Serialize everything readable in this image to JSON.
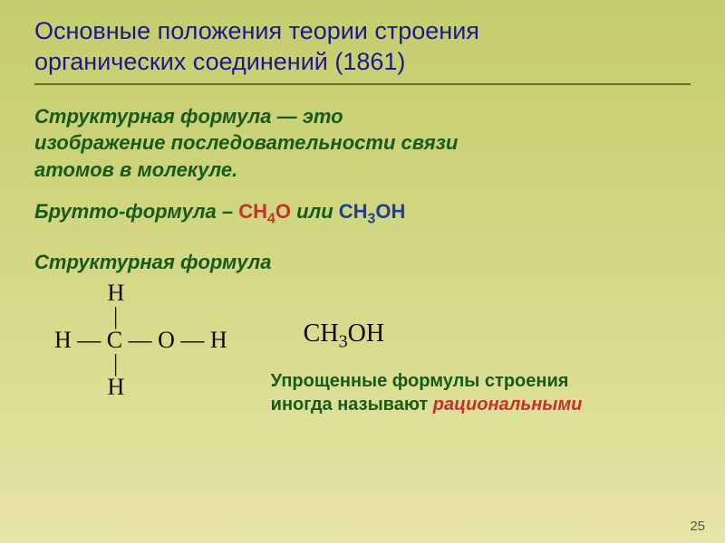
{
  "title_line1": "Основные положения теории строения",
  "title_line2": "органических соединений (1861)",
  "definition": {
    "term": "Структурная формула",
    "dash": " — это",
    "line2": "изображение последовательности связи",
    "line3": "атомов в молекуле."
  },
  "brutto": {
    "label": "Брутто-формула – ",
    "formula1_pre": "CH",
    "formula1_sub": "4",
    "formula1_post": "O",
    "or": " или ",
    "formula2_pre": "CH",
    "formula2_sub": "3",
    "formula2_post": "OH"
  },
  "struct_label": "Структурная формула",
  "structural_formula": {
    "r1": "         H",
    "r2": "          |",
    "r3": "H — C — O — H",
    "r4": "          |",
    "r5": "         H"
  },
  "ch3oh": {
    "pre": "CH",
    "sub": "3",
    "post": "OH"
  },
  "explanation": {
    "line1": "Упрощенные формулы строения",
    "line2_a": "иногда называют ",
    "line2_b": "рациональными"
  },
  "page_number": "25",
  "colors": {
    "title": "#1a1a8f",
    "green_text": "#175b1a",
    "red_formula": "#c7302a",
    "blue_formula": "#1f3d9b",
    "underline": "#6a6b2a"
  }
}
